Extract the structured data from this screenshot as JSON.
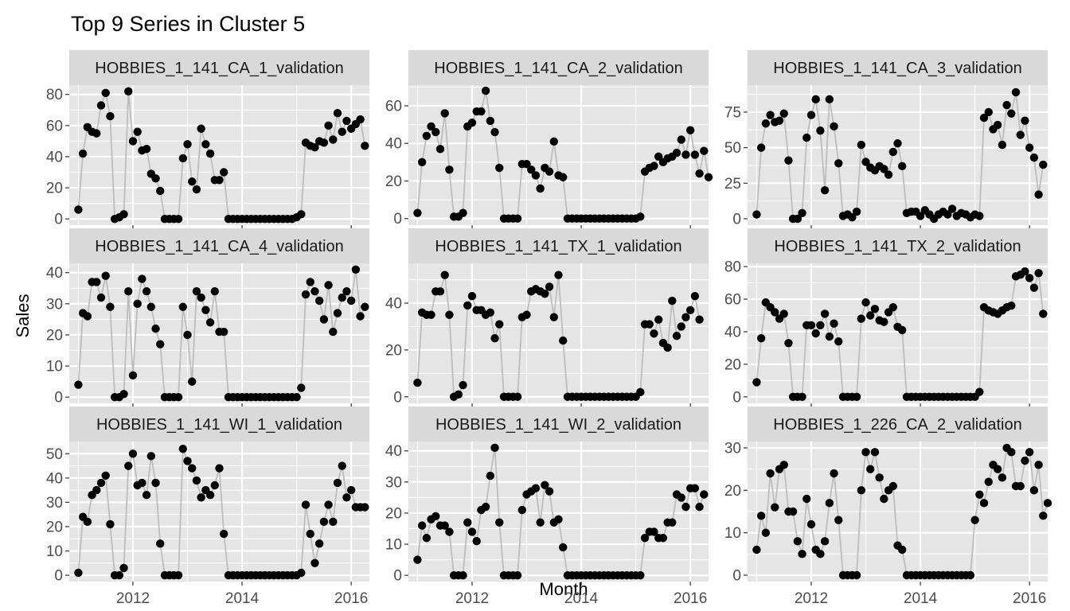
{
  "chart_data": {
    "type": "line",
    "title": "Top 9 Series in Cluster 5",
    "xlabel": "Month",
    "ylabel": "Sales",
    "x_ticks": [
      2012,
      2014,
      2016
    ],
    "xlim": [
      "2010-11",
      "2016-05"
    ],
    "x_start": "2011-01",
    "x_step": "month",
    "line_color": "#bdbdbd",
    "point_color": "#000000",
    "panel_bg": "#e5e5e5",
    "strip_bg": "#d9d9d9",
    "grid_color": "#ffffff",
    "panels": [
      {
        "label": "HOBBIES_1_141_CA_1_validation",
        "ylim": [
          -4,
          86
        ],
        "y_ticks": [
          0,
          20,
          40,
          60,
          80
        ],
        "values": [
          6,
          42,
          59,
          56,
          55,
          73,
          81,
          66,
          0,
          1,
          3,
          82,
          50,
          56,
          44,
          45,
          29,
          26,
          18,
          0,
          0,
          0,
          0,
          39,
          48,
          24,
          19,
          58,
          48,
          42,
          25,
          25,
          30,
          0,
          0,
          0,
          0,
          0,
          0,
          0,
          0,
          0,
          0,
          0,
          0,
          0,
          0,
          0,
          1,
          3,
          49,
          47,
          46,
          50,
          49,
          60,
          51,
          68,
          56,
          63,
          58,
          61,
          64,
          47
        ]
      },
      {
        "label": "HOBBIES_1_141_CA_2_validation",
        "ylim": [
          -3.5,
          71
        ],
        "y_ticks": [
          0,
          20,
          40,
          60
        ],
        "values": [
          3,
          30,
          44,
          49,
          46,
          37,
          56,
          26,
          1,
          1,
          3,
          49,
          51,
          57,
          57,
          68,
          52,
          46,
          27,
          0,
          0,
          0,
          0,
          29,
          29,
          26,
          23,
          16,
          27,
          25,
          41,
          23,
          22,
          0,
          0,
          0,
          0,
          0,
          0,
          0,
          0,
          0,
          0,
          0,
          0,
          0,
          0,
          0,
          0,
          1,
          25,
          27,
          28,
          33,
          30,
          32,
          33,
          35,
          42,
          34,
          47,
          34,
          24,
          36,
          22
        ]
      },
      {
        "label": "HOBBIES_1_141_CA_3_validation",
        "ylim": [
          -4.5,
          94
        ],
        "y_ticks": [
          0,
          25,
          50,
          75
        ],
        "values": [
          3,
          50,
          67,
          73,
          68,
          69,
          74,
          41,
          0,
          0,
          4,
          57,
          73,
          84,
          62,
          20,
          84,
          65,
          39,
          2,
          3,
          1,
          5,
          52,
          40,
          36,
          34,
          37,
          35,
          31,
          47,
          53,
          37,
          4,
          5,
          5,
          2,
          6,
          3,
          0,
          3,
          5,
          3,
          7,
          2,
          4,
          3,
          1,
          3,
          2,
          71,
          75,
          63,
          66,
          52,
          80,
          74,
          89,
          59,
          69,
          50,
          43,
          17,
          38
        ]
      },
      {
        "label": "HOBBIES_1_141_CA_4_validation",
        "ylim": [
          -2,
          43
        ],
        "y_ticks": [
          0,
          10,
          20,
          30,
          40
        ],
        "values": [
          4,
          27,
          26,
          37,
          37,
          32,
          39,
          29,
          0,
          0,
          1,
          34,
          7,
          30,
          38,
          34,
          29,
          22,
          17,
          0,
          0,
          0,
          0,
          29,
          20,
          5,
          34,
          32,
          28,
          24,
          34,
          21,
          21,
          0,
          0,
          0,
          0,
          0,
          0,
          0,
          0,
          0,
          0,
          0,
          0,
          0,
          0,
          0,
          0,
          3,
          33,
          37,
          34,
          31,
          25,
          36,
          21,
          27,
          32,
          34,
          31,
          41,
          26,
          29
        ]
      },
      {
        "label": "HOBBIES_1_141_TX_1_validation",
        "ylim": [
          -2.8,
          57
        ],
        "y_ticks": [
          0,
          20,
          40
        ],
        "values": [
          6,
          36,
          35,
          35,
          45,
          45,
          52,
          35,
          0,
          1,
          5,
          39,
          43,
          37,
          37,
          35,
          36,
          25,
          31,
          0,
          0,
          0,
          0,
          34,
          35,
          45,
          46,
          45,
          44,
          47,
          34,
          52,
          24,
          0,
          0,
          0,
          0,
          0,
          0,
          0,
          0,
          0,
          0,
          0,
          0,
          0,
          0,
          0,
          0,
          2,
          31,
          31,
          27,
          33,
          23,
          21,
          41,
          26,
          30,
          34,
          37,
          43,
          33
        ]
      },
      {
        "label": "HOBBIES_1_141_TX_2_validation",
        "ylim": [
          -4,
          82
        ],
        "y_ticks": [
          0,
          20,
          40,
          60,
          80
        ],
        "values": [
          9,
          36,
          58,
          55,
          52,
          48,
          51,
          33,
          0,
          0,
          0,
          44,
          44,
          39,
          44,
          51,
          37,
          45,
          34,
          0,
          0,
          0,
          0,
          48,
          58,
          50,
          54,
          47,
          46,
          52,
          55,
          43,
          41,
          0,
          0,
          0,
          0,
          0,
          0,
          0,
          0,
          0,
          0,
          0,
          0,
          0,
          0,
          0,
          0,
          3,
          55,
          53,
          52,
          51,
          53,
          55,
          56,
          74,
          75,
          77,
          73,
          67,
          76,
          51
        ]
      },
      {
        "label": "HOBBIES_1_141_WI_1_validation",
        "ylim": [
          -2.6,
          55
        ],
        "y_ticks": [
          0,
          10,
          20,
          30,
          40,
          50
        ],
        "values": [
          1,
          24,
          22,
          33,
          35,
          38,
          41,
          21,
          0,
          0,
          3,
          45,
          50,
          37,
          38,
          33,
          49,
          38,
          13,
          0,
          0,
          0,
          0,
          52,
          47,
          44,
          39,
          32,
          35,
          33,
          37,
          44,
          17,
          0,
          0,
          0,
          0,
          0,
          0,
          0,
          0,
          0,
          0,
          0,
          0,
          0,
          0,
          0,
          0,
          1,
          29,
          17,
          5,
          13,
          22,
          29,
          22,
          38,
          45,
          32,
          35,
          28,
          28,
          28
        ]
      },
      {
        "label": "HOBBIES_1_141_WI_2_validation",
        "ylim": [
          -2,
          43
        ],
        "y_ticks": [
          0,
          10,
          20,
          30,
          40
        ],
        "values": [
          5,
          16,
          12,
          18,
          19,
          16,
          16,
          14,
          0,
          0,
          0,
          17,
          14,
          11,
          21,
          22,
          32,
          41,
          17,
          0,
          0,
          0,
          0,
          21,
          26,
          27,
          28,
          17,
          29,
          27,
          17,
          18,
          9,
          0,
          0,
          0,
          0,
          0,
          0,
          0,
          0,
          0,
          0,
          0,
          0,
          0,
          0,
          0,
          0,
          0,
          12,
          14,
          14,
          12,
          12,
          17,
          17,
          26,
          25,
          22,
          28,
          28,
          22,
          26
        ]
      },
      {
        "label": "HOBBIES_1_226_CA_2_validation",
        "ylim": [
          -1.5,
          31.5
        ],
        "y_ticks": [
          0,
          10,
          20,
          30
        ],
        "values": [
          6,
          14,
          10,
          24,
          16,
          25,
          26,
          15,
          15,
          8,
          5,
          18,
          12,
          6,
          5,
          8,
          17,
          24,
          13,
          0,
          0,
          0,
          0,
          20,
          29,
          25,
          29,
          23,
          18,
          20,
          21,
          7,
          6,
          0,
          0,
          0,
          0,
          0,
          0,
          0,
          0,
          0,
          0,
          0,
          0,
          0,
          0,
          0,
          13,
          19,
          17,
          22,
          26,
          25,
          23,
          30,
          29,
          21,
          21,
          27,
          29,
          20,
          26,
          14,
          17
        ]
      }
    ]
  }
}
